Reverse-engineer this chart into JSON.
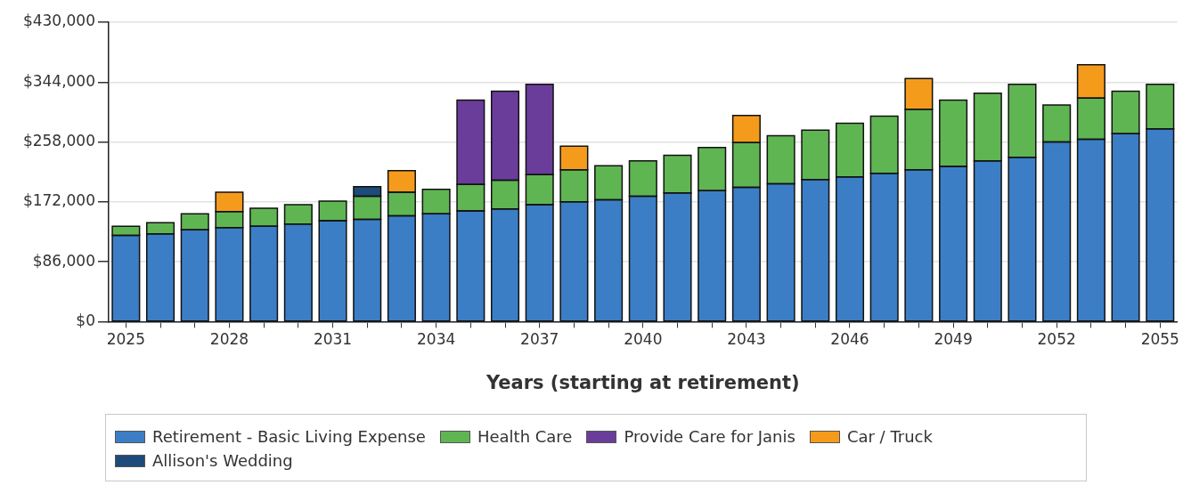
{
  "chart_data": {
    "type": "bar",
    "stacked": true,
    "xlabel": "Years (starting at retirement)",
    "categories": [
      "2025",
      null,
      null,
      "2028",
      null,
      null,
      "2031",
      null,
      null,
      "2034",
      null,
      null,
      "2037",
      null,
      null,
      "2040",
      null,
      null,
      "2043",
      null,
      null,
      "2046",
      null,
      null,
      "2049",
      null,
      null,
      "2052",
      null,
      null,
      "2055"
    ],
    "ylim": [
      0,
      430000
    ],
    "yticks": [
      {
        "value": 0,
        "label": "$0"
      },
      {
        "value": 86000,
        "label": "$86,000"
      },
      {
        "value": 172000,
        "label": "$172,000"
      },
      {
        "value": 258000,
        "label": "$258,000"
      },
      {
        "value": 344000,
        "label": "$344,000"
      },
      {
        "value": 430000,
        "label": "$430,000"
      }
    ],
    "grid": "y",
    "legend": "bottom",
    "series": [
      {
        "name": "Retirement - Basic Living Expense",
        "color": "#3b7ec6",
        "values": [
          124000,
          126000,
          132000,
          135000,
          137000,
          140000,
          145000,
          147000,
          152000,
          155000,
          159000,
          162000,
          168000,
          172000,
          175000,
          180000,
          185000,
          188000,
          193000,
          198000,
          204000,
          208000,
          213000,
          218000,
          223000,
          231000,
          236000,
          258000,
          262000,
          270000,
          277000
        ]
      },
      {
        "name": "Health Care",
        "color": "#60b553",
        "values": [
          13000,
          16000,
          23000,
          23000,
          26000,
          28000,
          28000,
          33000,
          34000,
          35000,
          38000,
          41000,
          43000,
          46000,
          49000,
          51000,
          54000,
          62000,
          64000,
          69000,
          71000,
          77000,
          82000,
          87000,
          95000,
          97000,
          105000,
          53000,
          59000,
          61000,
          64000
        ]
      },
      {
        "name": "Provide Care for Janis",
        "color": "#6b3d9a",
        "values": [
          null,
          null,
          null,
          null,
          null,
          null,
          null,
          null,
          null,
          null,
          121000,
          128000,
          130000,
          null,
          null,
          null,
          null,
          null,
          null,
          null,
          null,
          null,
          null,
          null,
          null,
          null,
          null,
          null,
          null,
          null,
          null
        ]
      },
      {
        "name": "Car / Truck",
        "color": "#f59b1c",
        "values": [
          null,
          null,
          null,
          28000,
          null,
          null,
          null,
          null,
          31000,
          null,
          null,
          null,
          null,
          34000,
          null,
          null,
          null,
          null,
          39000,
          null,
          null,
          null,
          null,
          44000,
          null,
          null,
          null,
          null,
          48000,
          null,
          null
        ]
      },
      {
        "name": "Allison's Wedding",
        "color": "#1d4b7a",
        "values": [
          null,
          null,
          null,
          null,
          null,
          null,
          null,
          14000,
          null,
          null,
          null,
          null,
          null,
          null,
          null,
          null,
          null,
          null,
          null,
          null,
          null,
          null,
          null,
          null,
          null,
          null,
          null,
          null,
          null,
          null,
          null
        ]
      }
    ]
  }
}
